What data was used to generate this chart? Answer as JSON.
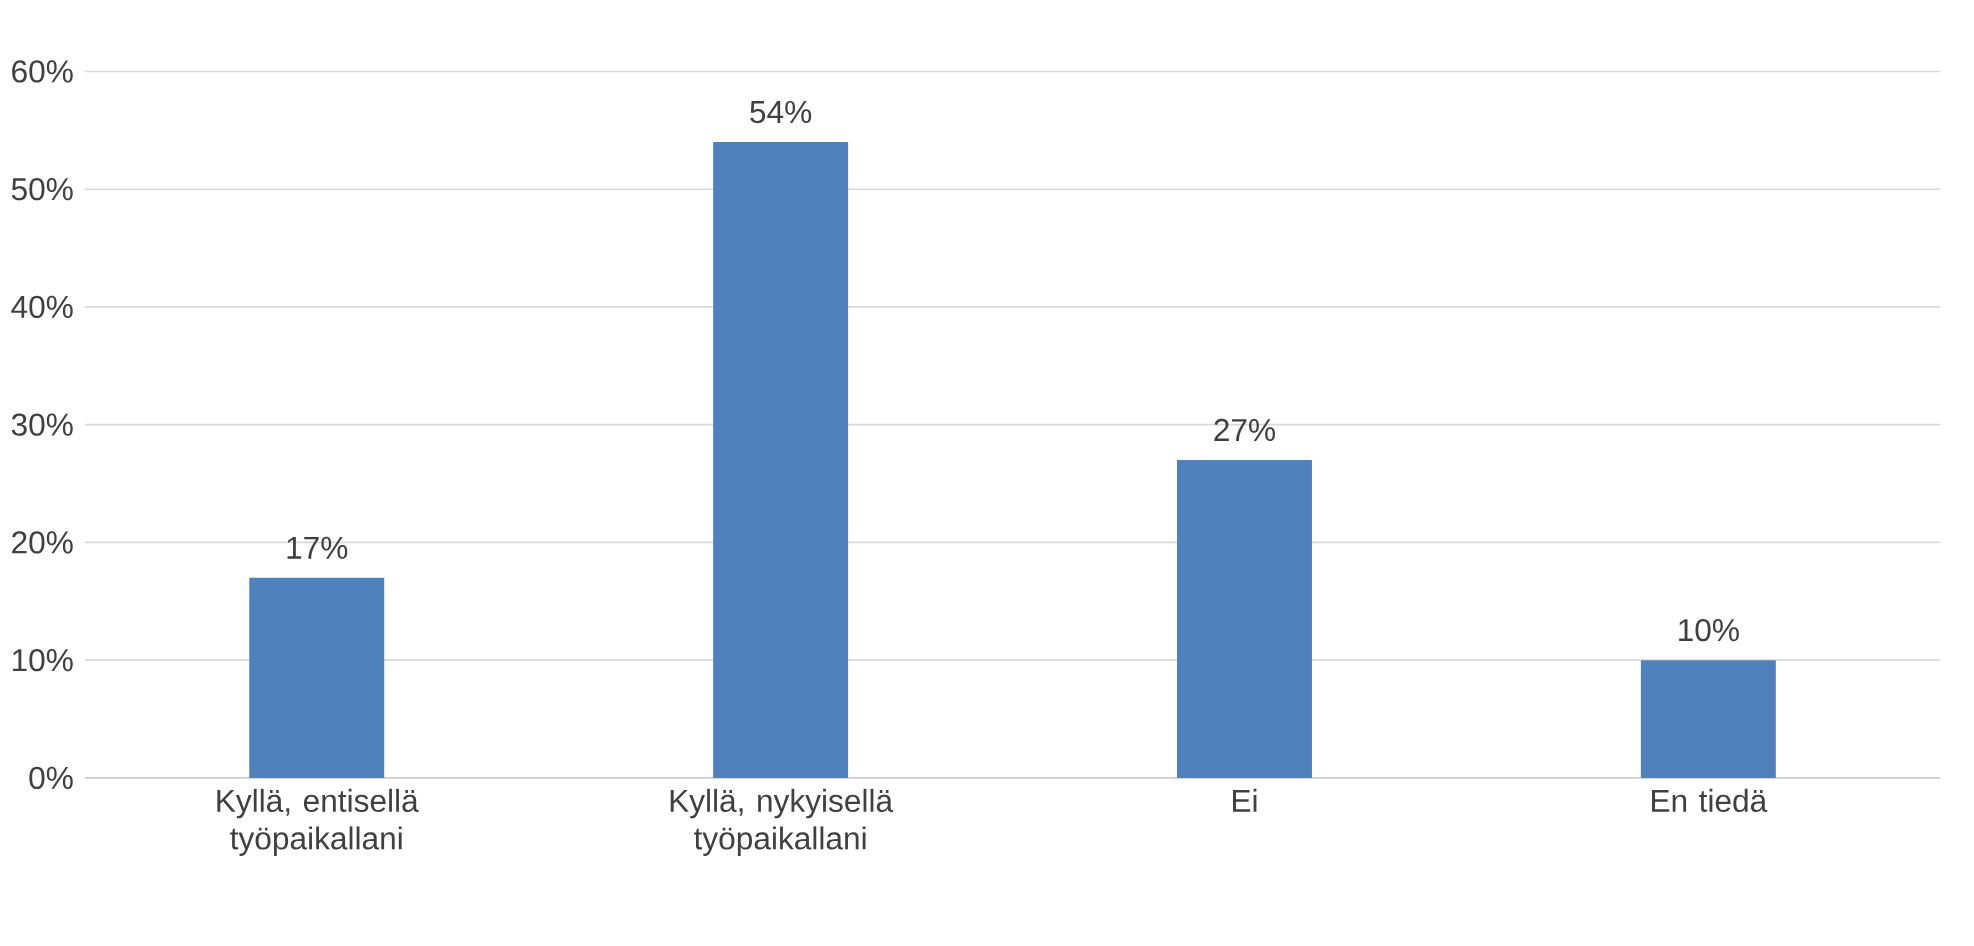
{
  "chart_data": {
    "type": "bar",
    "categories": [
      "Kyllä, entisellä työpaikallani",
      "Kyllä, nykyisellä työpaikallani",
      "Ei",
      "En tiedä"
    ],
    "values": [
      17,
      54,
      27,
      10
    ],
    "value_labels": [
      "17%",
      "54%",
      "27%",
      "10%"
    ],
    "color": "#4f81bd",
    "ylim": [
      0,
      60
    ],
    "yticks": [
      {
        "value": 0,
        "label": "0%"
      },
      {
        "value": 10,
        "label": "10%"
      },
      {
        "value": 20,
        "label": "20%"
      },
      {
        "value": 30,
        "label": "30%"
      },
      {
        "value": 40,
        "label": "40%"
      },
      {
        "value": 50,
        "label": "50%"
      },
      {
        "value": 60,
        "label": "60%"
      }
    ],
    "grid": "y"
  }
}
